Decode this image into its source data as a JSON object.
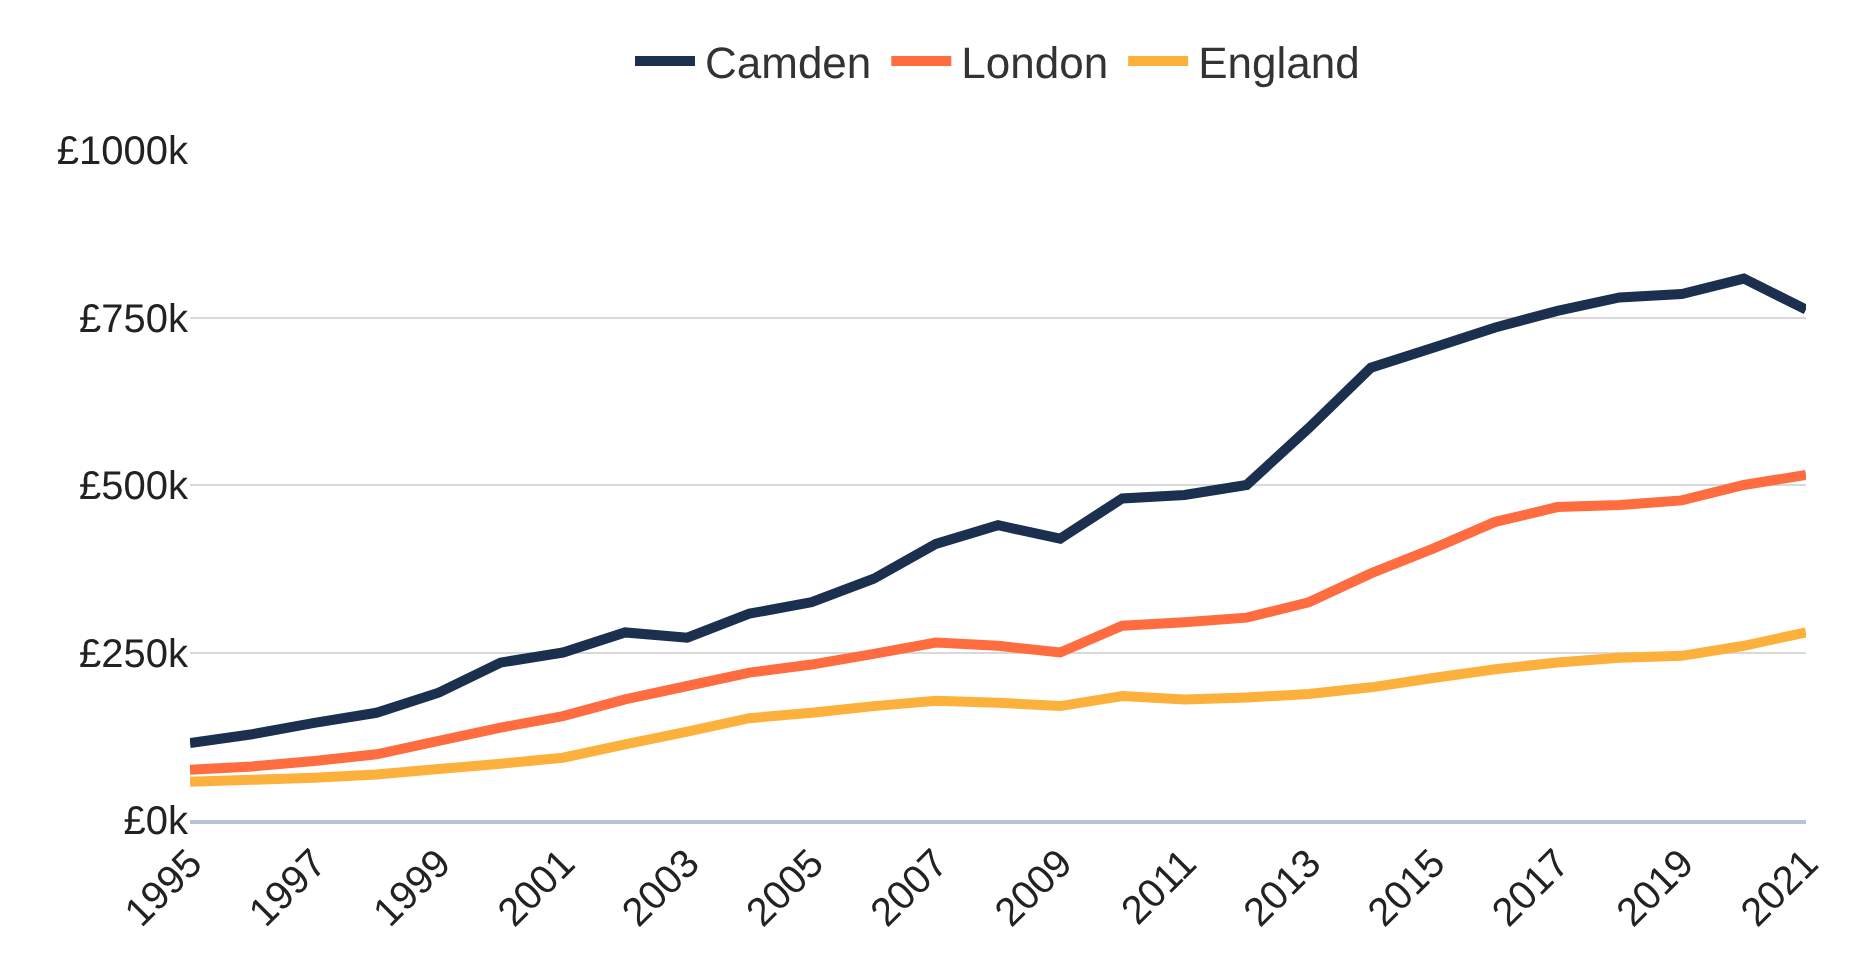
{
  "chart_data": {
    "type": "line",
    "x": [
      1995,
      1996,
      1997,
      1998,
      1999,
      2000,
      2001,
      2002,
      2003,
      2004,
      2005,
      2006,
      2007,
      2008,
      2009,
      2010,
      2011,
      2012,
      2013,
      2014,
      2015,
      2016,
      2017,
      2018,
      2019,
      2020,
      2021
    ],
    "series": [
      {
        "name": "Camden",
        "color": "#1b2f4e",
        "values": [
          115,
          128,
          145,
          160,
          190,
          235,
          250,
          280,
          272,
          308,
          325,
          360,
          412,
          440,
          420,
          480,
          485,
          500,
          585,
          675,
          705,
          735,
          760,
          780,
          785,
          808,
          762
        ]
      },
      {
        "name": "London",
        "color": "#fe6c3f",
        "values": [
          75,
          80,
          88,
          98,
          118,
          138,
          155,
          180,
          200,
          220,
          232,
          248,
          265,
          260,
          250,
          290,
          295,
          302,
          325,
          368,
          405,
          445,
          467,
          470,
          477,
          500,
          515
        ]
      },
      {
        "name": "England",
        "color": "#fbb13c",
        "values": [
          57,
          60,
          63,
          68,
          76,
          84,
          93,
          113,
          132,
          152,
          160,
          170,
          178,
          175,
          170,
          185,
          180,
          183,
          188,
          198,
          212,
          225,
          235,
          242,
          245,
          260,
          280
        ]
      }
    ],
    "xlim": [
      1995,
      2021
    ],
    "xticks": [
      1995,
      1997,
      1999,
      2001,
      2003,
      2005,
      2007,
      2009,
      2011,
      2013,
      2015,
      2017,
      2019,
      2021
    ],
    "ylim": [
      0,
      1000
    ],
    "yticks": [
      {
        "value": 0,
        "label": "£0k"
      },
      {
        "value": 250,
        "label": "£250k"
      },
      {
        "value": 500,
        "label": "£500k"
      },
      {
        "value": 750,
        "label": "£750k"
      },
      {
        "value": 1000,
        "label": "£1000k"
      }
    ],
    "grid": "y",
    "legend": "top",
    "marker": "none",
    "line_style": "solid"
  }
}
